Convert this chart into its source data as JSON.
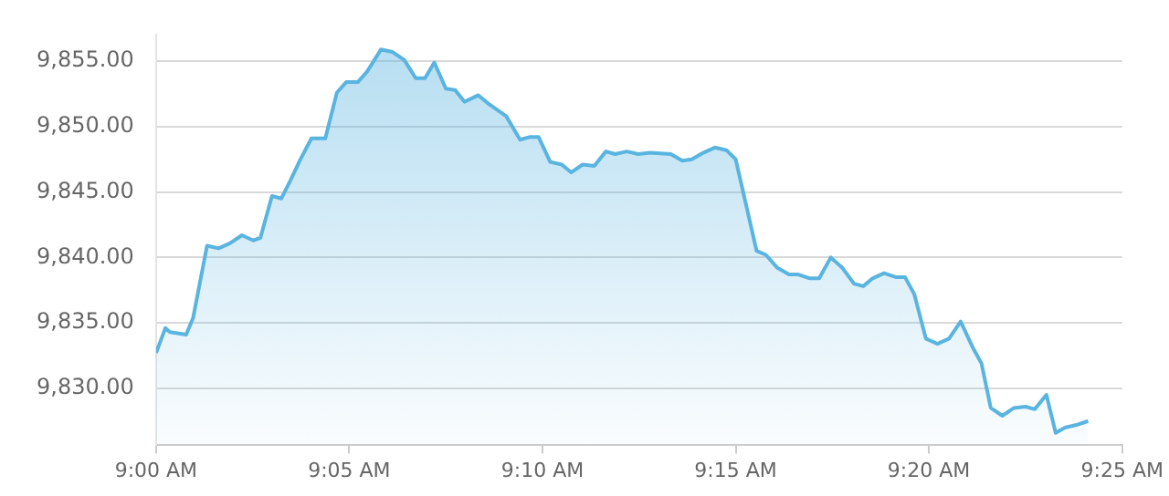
{
  "chart_data": {
    "type": "area",
    "x": [
      9.0,
      9.004,
      9.006,
      9.013,
      9.016,
      9.022,
      9.027,
      9.032,
      9.037,
      9.042,
      9.045,
      9.05,
      9.054,
      9.058,
      9.062,
      9.067,
      9.073,
      9.078,
      9.082,
      9.087,
      9.091,
      9.097,
      9.102,
      9.107,
      9.112,
      9.116,
      9.12,
      9.125,
      9.129,
      9.133,
      9.139,
      9.143,
      9.151,
      9.157,
      9.161,
      9.165,
      9.17,
      9.175,
      9.179,
      9.184,
      9.189,
      9.194,
      9.198,
      9.203,
      9.208,
      9.213,
      9.222,
      9.227,
      9.231,
      9.236,
      9.241,
      9.246,
      9.25,
      9.259,
      9.263,
      9.268,
      9.273,
      9.277,
      9.282,
      9.286,
      9.291,
      9.296,
      9.301,
      9.305,
      9.309,
      9.314,
      9.319,
      9.323,
      9.327,
      9.332,
      9.337,
      9.342,
      9.347,
      9.352,
      9.356,
      9.36,
      9.365,
      9.37,
      9.375,
      9.379,
      9.384,
      9.388,
      9.392,
      9.397,
      9.402
    ],
    "series": [
      {
        "color": "#5ab4e0",
        "values": [
          9832.7,
          9834.6,
          9834.3,
          9834.1,
          9835.4,
          9840.9,
          9840.7,
          9841.1,
          9841.7,
          9841.3,
          9841.5,
          9844.7,
          9844.5,
          9845.9,
          9847.4,
          9849.1,
          9849.1,
          9852.6,
          9853.4,
          9853.4,
          9854.2,
          9855.9,
          9855.7,
          9855.1,
          9853.7,
          9853.7,
          9854.9,
          9852.9,
          9852.8,
          9851.9,
          9852.4,
          9851.8,
          9850.8,
          9849.0,
          9849.2,
          9849.2,
          9847.3,
          9847.1,
          9846.5,
          9847.1,
          9847.0,
          9848.1,
          9847.9,
          9848.1,
          9847.9,
          9848.0,
          9847.9,
          9847.4,
          9847.5,
          9848.0,
          9848.4,
          9848.2,
          9847.5,
          9840.5,
          9840.2,
          9839.2,
          9838.7,
          9838.7,
          9838.4,
          9838.4,
          9840.0,
          9839.2,
          9838.0,
          9837.8,
          9838.4,
          9838.8,
          9838.5,
          9838.5,
          9837.2,
          9833.8,
          9833.4,
          9833.8,
          9835.1,
          9833.2,
          9831.9,
          9828.5,
          9827.9,
          9828.5,
          9828.6,
          9828.4,
          9829.5,
          9826.6,
          9827.0,
          9827.2,
          9827.5
        ]
      }
    ],
    "xlim": [
      9.0,
      9.4167
    ],
    "xticks": [
      {
        "value": 9.0,
        "label": "9:00 AM"
      },
      {
        "value": 9.0833,
        "label": "9:05 AM"
      },
      {
        "value": 9.1667,
        "label": "9:10 AM"
      },
      {
        "value": 9.25,
        "label": "9:15 AM"
      },
      {
        "value": 9.3333,
        "label": "9:20 AM"
      },
      {
        "value": 9.4167,
        "label": "9:25 AM"
      }
    ],
    "ylim": [
      9825.7,
      9857
    ],
    "yticks": [
      {
        "value": 9830,
        "label": "9,830.00"
      },
      {
        "value": 9835,
        "label": "9,835.00"
      },
      {
        "value": 9840,
        "label": "9,840.00"
      },
      {
        "value": 9845,
        "label": "9,845.00"
      },
      {
        "value": 9850,
        "label": "9,850.00"
      },
      {
        "value": 9855,
        "label": "9,855.00"
      }
    ],
    "grid": "y",
    "marker": "none",
    "line_style": "solid",
    "legend": false
  }
}
